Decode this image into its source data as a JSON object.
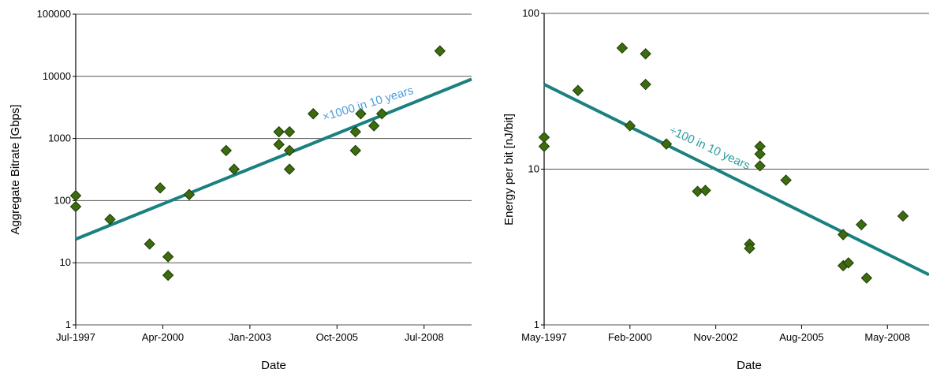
{
  "chart_data": [
    {
      "type": "scatter",
      "xlabel": "Date",
      "ylabel": "Aggregate Bitrate [Gbps]",
      "yscale": "log",
      "ylim": [
        1,
        100000
      ],
      "xlim": [
        "1997-07",
        "2010-01"
      ],
      "x_ticks": [
        "Jul-1997",
        "Apr-2000",
        "Jan-2003",
        "Oct-2005",
        "Jul-2008"
      ],
      "y_ticks": [
        "1",
        "10",
        "100",
        "1000",
        "10000",
        "100000"
      ],
      "grid": "horizontal",
      "points": [
        {
          "x": "1997-07",
          "y": 120
        },
        {
          "x": "1997-07",
          "y": 80
        },
        {
          "x": "1998-08",
          "y": 50
        },
        {
          "x": "1999-11",
          "y": 20
        },
        {
          "x": "2000-03",
          "y": 160
        },
        {
          "x": "2000-06",
          "y": 12.5
        },
        {
          "x": "2000-06",
          "y": 6.3
        },
        {
          "x": "2001-02",
          "y": 125
        },
        {
          "x": "2002-04",
          "y": 640
        },
        {
          "x": "2002-07",
          "y": 320
        },
        {
          "x": "2003-12",
          "y": 1280
        },
        {
          "x": "2003-12",
          "y": 800
        },
        {
          "x": "2004-04",
          "y": 1280
        },
        {
          "x": "2004-04",
          "y": 640
        },
        {
          "x": "2004-04",
          "y": 320
        },
        {
          "x": "2005-01",
          "y": 2500
        },
        {
          "x": "2006-05",
          "y": 1280
        },
        {
          "x": "2006-05",
          "y": 640
        },
        {
          "x": "2006-07",
          "y": 2500
        },
        {
          "x": "2006-12",
          "y": 1600
        },
        {
          "x": "2007-03",
          "y": 2500
        },
        {
          "x": "2009-01",
          "y": 25600
        }
      ],
      "trend": {
        "x": [
          "1997-07",
          "2010-01"
        ],
        "y": [
          24,
          9000
        ]
      },
      "annotation": "×1000 in 10 years",
      "colors": {
        "marker": "#3d6b10",
        "trend": "#1a8080",
        "annotation": "#4a9ee0"
      }
    },
    {
      "type": "scatter",
      "xlabel": "Date",
      "ylabel": "Energy per bit [nJ/bit]",
      "yscale": "log",
      "ylim": [
        1,
        100
      ],
      "xlim": [
        "1997-05",
        "2009-09"
      ],
      "x_ticks": [
        "May-1997",
        "Feb-2000",
        "Nov-2002",
        "Aug-2005",
        "May-2008"
      ],
      "y_ticks": [
        "1",
        "10",
        "100"
      ],
      "grid": "horizontal",
      "points": [
        {
          "x": "1997-05",
          "y": 16
        },
        {
          "x": "1997-05",
          "y": 14
        },
        {
          "x": "1998-06",
          "y": 32
        },
        {
          "x": "1999-11",
          "y": 60
        },
        {
          "x": "2000-02",
          "y": 19
        },
        {
          "x": "2000-08",
          "y": 55
        },
        {
          "x": "2000-08",
          "y": 35
        },
        {
          "x": "2001-04",
          "y": 14.5
        },
        {
          "x": "2002-04",
          "y": 7.2
        },
        {
          "x": "2002-07",
          "y": 7.3
        },
        {
          "x": "2003-12",
          "y": 3.3
        },
        {
          "x": "2003-12",
          "y": 3.1
        },
        {
          "x": "2004-04",
          "y": 14
        },
        {
          "x": "2004-04",
          "y": 12.5
        },
        {
          "x": "2004-04",
          "y": 10.5
        },
        {
          "x": "2005-02",
          "y": 8.5
        },
        {
          "x": "2006-12",
          "y": 3.8
        },
        {
          "x": "2006-12",
          "y": 2.4
        },
        {
          "x": "2007-02",
          "y": 2.5
        },
        {
          "x": "2007-07",
          "y": 4.4
        },
        {
          "x": "2007-09",
          "y": 2.0
        },
        {
          "x": "2008-11",
          "y": 5.0
        }
      ],
      "trend": {
        "x": [
          "1997-05",
          "2009-09"
        ],
        "y": [
          35,
          2.1
        ]
      },
      "annotation": "÷100 in 10 years",
      "colors": {
        "marker": "#3d6b10",
        "trend": "#1a8080",
        "annotation": "#2a9a9a"
      }
    }
  ]
}
